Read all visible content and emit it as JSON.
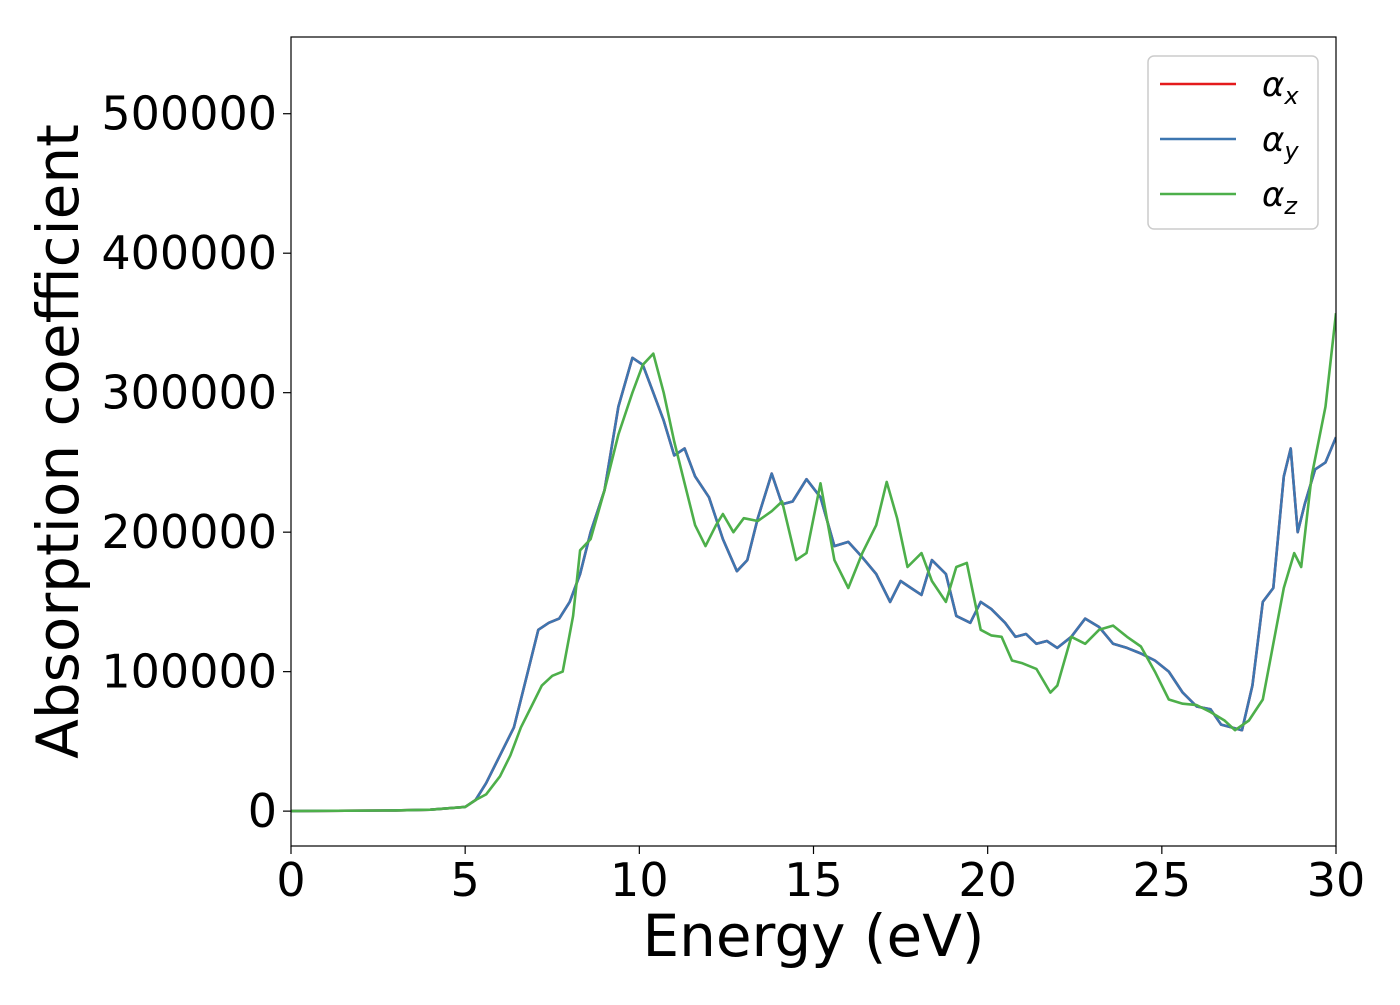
{
  "chart_data": {
    "type": "line",
    "title": "",
    "xlabel": "Energy (eV)",
    "ylabel": "Absorption coefficient",
    "xlim": [
      0,
      30
    ],
    "ylim": [
      -25000,
      555000
    ],
    "xticks": [
      0,
      5,
      10,
      15,
      20,
      25,
      30
    ],
    "yticks": [
      0,
      100000,
      200000,
      300000,
      400000,
      500000
    ],
    "grid": false,
    "legend_position": "top-right",
    "series": [
      {
        "name": "α",
        "subscript": "x",
        "color": "#e41a1c",
        "x": [
          0,
          3,
          4,
          4.5,
          5,
          5.3,
          5.6,
          6,
          6.4,
          6.8,
          7.1,
          7.4,
          7.7,
          8,
          8.3,
          8.6,
          9,
          9.4,
          9.8,
          10.1,
          10.4,
          10.7,
          11,
          11.3,
          11.6,
          12,
          12.4,
          12.8,
          13.1,
          13.4,
          13.8,
          14.1,
          14.4,
          14.8,
          15.2,
          15.6,
          16,
          16.4,
          16.8,
          17.2,
          17.5,
          17.8,
          18.1,
          18.4,
          18.8,
          19.1,
          19.5,
          19.8,
          20.1,
          20.5,
          20.8,
          21.1,
          21.4,
          21.7,
          22,
          22.4,
          22.8,
          23.2,
          23.6,
          24,
          24.4,
          24.8,
          25.2,
          25.6,
          26,
          26.4,
          26.7,
          27,
          27.3,
          27.6,
          27.9,
          28.2,
          28.5,
          28.7,
          28.9,
          29.1,
          29.4,
          29.7,
          30
        ],
        "y": [
          0,
          500,
          1000,
          2000,
          3000,
          8000,
          20000,
          40000,
          60000,
          100000,
          130000,
          135000,
          138000,
          150000,
          170000,
          200000,
          230000,
          290000,
          325000,
          320000,
          300000,
          280000,
          255000,
          260000,
          240000,
          225000,
          195000,
          172000,
          180000,
          210000,
          242000,
          220000,
          222000,
          238000,
          225000,
          190000,
          193000,
          182000,
          170000,
          150000,
          165000,
          160000,
          155000,
          180000,
          170000,
          140000,
          135000,
          150000,
          145000,
          135000,
          125000,
          127000,
          120000,
          122000,
          117000,
          125000,
          138000,
          132000,
          120000,
          117000,
          113000,
          108000,
          100000,
          85000,
          75000,
          73000,
          62000,
          60000,
          58000,
          90000,
          150000,
          160000,
          240000,
          260000,
          200000,
          220000,
          245000,
          250000,
          268000
        ]
      },
      {
        "name": "α",
        "subscript": "y",
        "color": "#3d76b0",
        "x": [
          0,
          3,
          4,
          4.5,
          5,
          5.3,
          5.6,
          6,
          6.4,
          6.8,
          7.1,
          7.4,
          7.7,
          8,
          8.3,
          8.6,
          9,
          9.4,
          9.8,
          10.1,
          10.4,
          10.7,
          11,
          11.3,
          11.6,
          12,
          12.4,
          12.8,
          13.1,
          13.4,
          13.8,
          14.1,
          14.4,
          14.8,
          15.2,
          15.6,
          16,
          16.4,
          16.8,
          17.2,
          17.5,
          17.8,
          18.1,
          18.4,
          18.8,
          19.1,
          19.5,
          19.8,
          20.1,
          20.5,
          20.8,
          21.1,
          21.4,
          21.7,
          22,
          22.4,
          22.8,
          23.2,
          23.6,
          24,
          24.4,
          24.8,
          25.2,
          25.6,
          26,
          26.4,
          26.7,
          27,
          27.3,
          27.6,
          27.9,
          28.2,
          28.5,
          28.7,
          28.9,
          29.1,
          29.4,
          29.7,
          30
        ],
        "y": [
          0,
          500,
          1000,
          2000,
          3000,
          8000,
          20000,
          40000,
          60000,
          100000,
          130000,
          135000,
          138000,
          150000,
          170000,
          200000,
          230000,
          290000,
          325000,
          320000,
          300000,
          280000,
          255000,
          260000,
          240000,
          225000,
          195000,
          172000,
          180000,
          210000,
          242000,
          220000,
          222000,
          238000,
          225000,
          190000,
          193000,
          182000,
          170000,
          150000,
          165000,
          160000,
          155000,
          180000,
          170000,
          140000,
          135000,
          150000,
          145000,
          135000,
          125000,
          127000,
          120000,
          122000,
          117000,
          125000,
          138000,
          132000,
          120000,
          117000,
          113000,
          108000,
          100000,
          85000,
          75000,
          73000,
          62000,
          60000,
          58000,
          90000,
          150000,
          160000,
          240000,
          260000,
          200000,
          220000,
          245000,
          250000,
          268000
        ]
      },
      {
        "name": "α",
        "subscript": "z",
        "color": "#4daf4a",
        "x": [
          0,
          3,
          4,
          4.5,
          5,
          5.3,
          5.6,
          6,
          6.3,
          6.6,
          6.9,
          7.2,
          7.5,
          7.8,
          8.1,
          8.3,
          8.6,
          9,
          9.4,
          9.8,
          10.1,
          10.4,
          10.7,
          11,
          11.3,
          11.6,
          11.9,
          12.2,
          12.4,
          12.7,
          13,
          13.4,
          13.8,
          14.1,
          14.5,
          14.8,
          15.2,
          15.6,
          16,
          16.4,
          16.8,
          17.1,
          17.4,
          17.7,
          18.1,
          18.4,
          18.8,
          19.1,
          19.4,
          19.8,
          20.1,
          20.4,
          20.7,
          21,
          21.4,
          21.8,
          22,
          22.4,
          22.8,
          23.2,
          23.6,
          24,
          24.4,
          24.8,
          25.2,
          25.6,
          26,
          26.4,
          26.8,
          27.1,
          27.5,
          27.9,
          28.2,
          28.5,
          28.8,
          29,
          29.3,
          29.7,
          30
        ],
        "y": [
          0,
          500,
          1000,
          2000,
          3000,
          8000,
          12000,
          25000,
          40000,
          60000,
          75000,
          90000,
          97000,
          100000,
          140000,
          187000,
          195000,
          230000,
          270000,
          300000,
          320000,
          328000,
          300000,
          265000,
          235000,
          205000,
          190000,
          205000,
          213000,
          200000,
          210000,
          208000,
          215000,
          222000,
          180000,
          185000,
          235000,
          180000,
          160000,
          185000,
          205000,
          236000,
          210000,
          175000,
          185000,
          165000,
          150000,
          175000,
          178000,
          130000,
          126000,
          125000,
          108000,
          106000,
          102000,
          85000,
          90000,
          125000,
          120000,
          130000,
          133000,
          125000,
          118000,
          100000,
          80000,
          77000,
          76000,
          71000,
          65000,
          58000,
          65000,
          80000,
          120000,
          160000,
          185000,
          175000,
          240000,
          290000,
          357000
        ]
      }
    ]
  }
}
